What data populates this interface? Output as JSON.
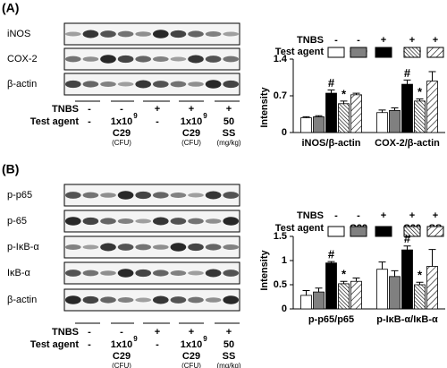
{
  "panels": [
    {
      "label": "(A)",
      "blot_rows": [
        "iNOS",
        "COX-2",
        "β-actin"
      ],
      "treatment": [
        {
          "label": "TNBS",
          "cells": [
            "-",
            "-",
            "+",
            "+",
            "+"
          ]
        },
        {
          "label": "Test agent",
          "cells": [
            "-",
            {
              "dose": "1x10",
              "exponent": "9",
              "agent": "C29",
              "unit": "(CFU)"
            },
            "-",
            {
              "dose": "1x10",
              "exponent": "9",
              "agent": "C29",
              "unit": "(CFU)"
            },
            {
              "dose": "50",
              "agent": "SS",
              "unit": "(mg/kg)"
            }
          ]
        }
      ]
    },
    {
      "label": "(B)",
      "blot_rows": [
        "p-p65",
        "p-65",
        "p-IκB-α",
        "IκB-α",
        "β-actin"
      ],
      "treatment": [
        {
          "label": "TNBS",
          "cells": [
            "-",
            "-",
            "+",
            "+",
            "+"
          ]
        },
        {
          "label": "Test agent",
          "cells": [
            "-",
            {
              "dose": "1x10",
              "exponent": "9",
              "agent": "C29",
              "unit": "(CFU)"
            },
            "-",
            {
              "dose": "1x10",
              "exponent": "9",
              "agent": "C29",
              "unit": "(CFU)"
            },
            {
              "dose": "50",
              "agent": "SS",
              "unit": "(mg/kg)"
            }
          ]
        }
      ]
    }
  ],
  "chart_data": [
    {
      "type": "bar",
      "y_label": "Intensity",
      "categories": [
        "iNOS/β-actin",
        "COX-2/β-actin"
      ],
      "ylim": [
        0,
        1.4
      ],
      "yticks": [
        0,
        0.7,
        1.4
      ],
      "legend": [
        {
          "label": "TNBS",
          "cells": [
            "-",
            "-",
            "+",
            "+",
            "+"
          ]
        },
        {
          "label": "Test agent",
          "cells": [
            "-",
            "C29",
            "-",
            "C29",
            "SS"
          ]
        }
      ],
      "series": [
        {
          "color": "#ffffff",
          "values": [
            0.28,
            0.38
          ],
          "errors": [
            0.02,
            0.05
          ]
        },
        {
          "color": "#808080",
          "values": [
            0.3,
            0.42
          ],
          "errors": [
            0.02,
            0.05
          ]
        },
        {
          "color": "#000000",
          "values": [
            0.75,
            0.92
          ],
          "errors": [
            0.06,
            0.08
          ],
          "markers": [
            "#",
            "#"
          ]
        },
        {
          "color": "#000000",
          "pattern": "hatch-dense",
          "values": [
            0.55,
            0.6
          ],
          "errors": [
            0.05,
            0.04
          ],
          "markers": [
            "*",
            "*"
          ]
        },
        {
          "color": "#000000",
          "pattern": "hatch-wide",
          "values": [
            0.72,
            0.98
          ],
          "errors": [
            0.03,
            0.18
          ]
        }
      ]
    },
    {
      "type": "bar",
      "y_label": "Intensity",
      "categories": [
        "p-p65/p65",
        "p-IκB-α/IκB-α"
      ],
      "ylim": [
        0,
        1.5
      ],
      "yticks": [
        0,
        0.5,
        1,
        1.5
      ],
      "legend": [
        {
          "label": "TNBS",
          "cells": [
            "-",
            "-",
            "+",
            "+",
            "+"
          ]
        },
        {
          "label": "Test agent",
          "cells": [
            "-",
            "C29",
            "-",
            "C29",
            "SS"
          ]
        }
      ],
      "series": [
        {
          "color": "#ffffff",
          "values": [
            0.28,
            0.82
          ],
          "errors": [
            0.1,
            0.15
          ]
        },
        {
          "color": "#808080",
          "values": [
            0.35,
            0.67
          ],
          "errors": [
            0.08,
            0.12
          ]
        },
        {
          "color": "#000000",
          "values": [
            0.95,
            1.22
          ],
          "errors": [
            0.03,
            0.08
          ],
          "markers": [
            "#",
            "#"
          ]
        },
        {
          "color": "#000000",
          "pattern": "hatch-dense",
          "values": [
            0.52,
            0.5
          ],
          "errors": [
            0.05,
            0.05
          ],
          "markers": [
            "*",
            "*"
          ]
        },
        {
          "color": "#000000",
          "pattern": "hatch-wide",
          "values": [
            0.57,
            0.88
          ],
          "errors": [
            0.07,
            0.35
          ]
        }
      ]
    }
  ]
}
